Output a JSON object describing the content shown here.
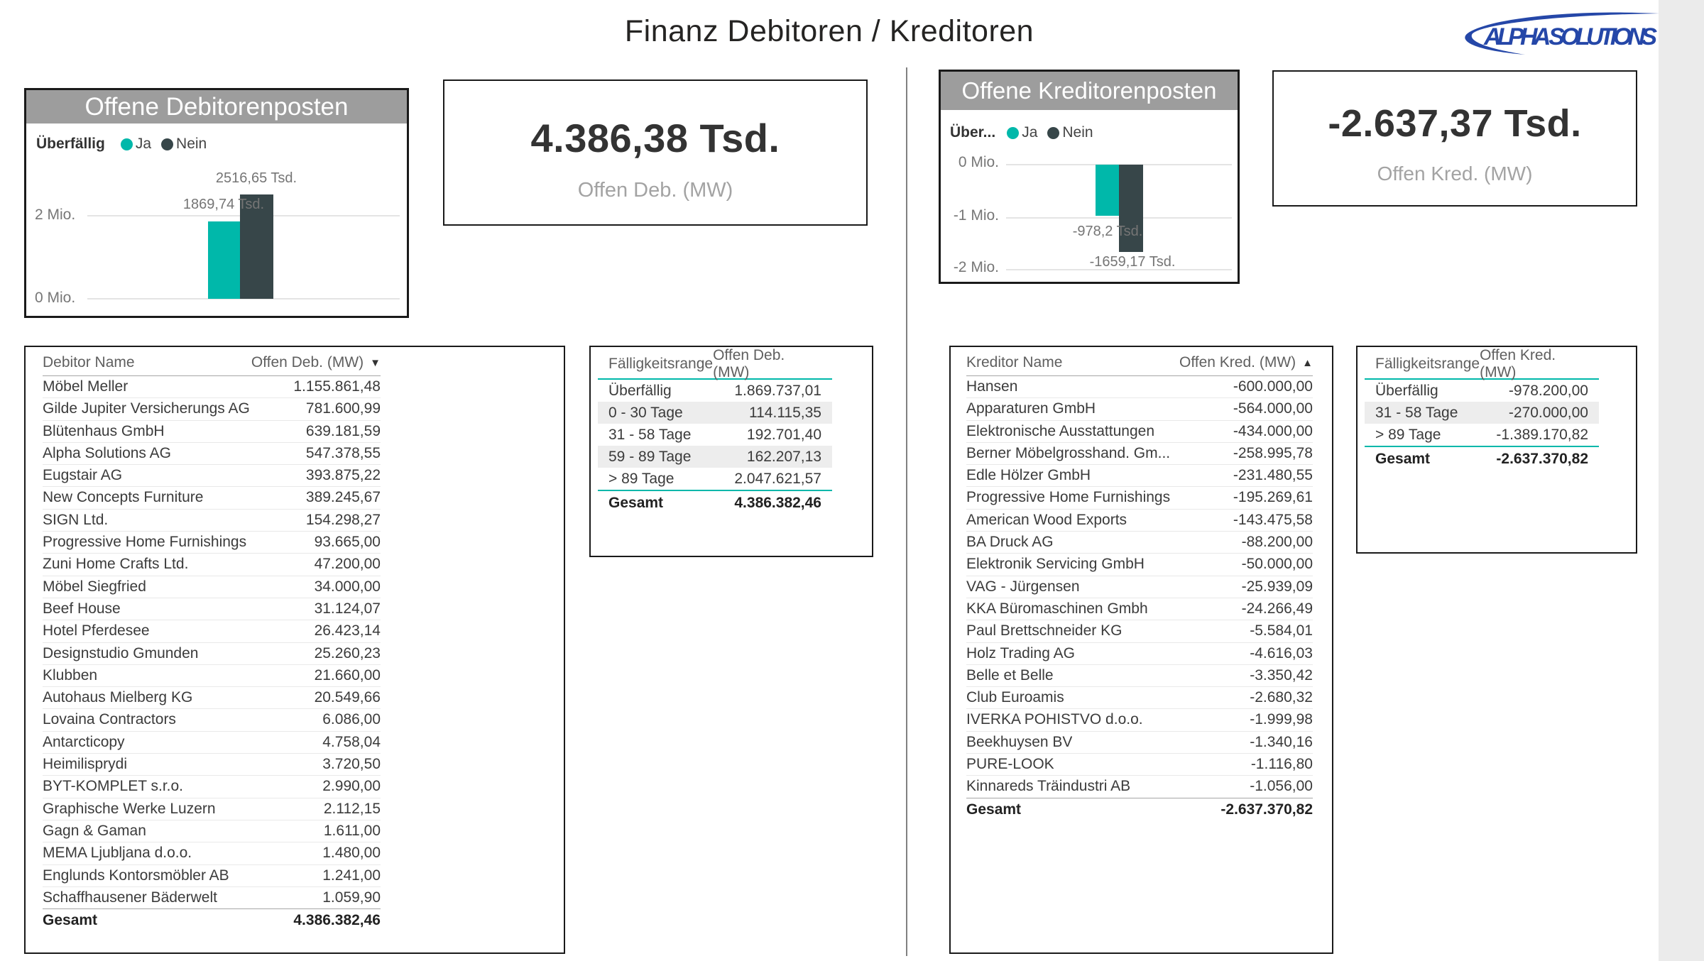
{
  "page": {
    "title": "Finanz Debitoren / Kreditoren",
    "background": "#FFFFFF",
    "desktop_strip_color": "#EBEBEB"
  },
  "logo": {
    "text": "ALPHA SOLUTIONS",
    "color": "#2547A8"
  },
  "colors": {
    "teal": "#00B8AA",
    "dark_slate": "#374649",
    "card_header_bg": "#9D9D9D"
  },
  "chart_data": [
    {
      "id": "debitoren-bar-chart",
      "type": "bar",
      "title": "Offene Debitorenposten",
      "legend_title": "Überfällig",
      "legend_position": "top",
      "categories": [
        "Ja",
        "Nein"
      ],
      "series": [
        {
          "name": "Offen Deb. (MW)",
          "values_tsd": [
            1869.74,
            2516.65
          ]
        }
      ],
      "values_mio": [
        1.86974,
        2.51665
      ],
      "labels": [
        "1869,74 Tsd.",
        "2516,65 Tsd."
      ],
      "y_ticks": [
        "2 Mio.",
        "0 Mio."
      ],
      "ylim_mio": [
        0,
        2.7
      ],
      "grid": true
    },
    {
      "id": "kreditoren-bar-chart",
      "type": "bar",
      "title": "Offene Kreditorenposten",
      "legend_title": "Über...",
      "legend_position": "top",
      "categories": [
        "Ja",
        "Nein"
      ],
      "series": [
        {
          "name": "Offen Kred. (MW)",
          "values_tsd": [
            -978.2,
            -1659.17
          ]
        }
      ],
      "values_mio": [
        -0.9782,
        -1.65917
      ],
      "labels": [
        "-978,2 Tsd.",
        "-1659,17 Tsd."
      ],
      "y_ticks": [
        "0 Mio.",
        "-1 Mio.",
        "-2 Mio."
      ],
      "ylim_mio": [
        -2.2,
        0
      ],
      "grid": true
    }
  ],
  "debitoren": {
    "kpi": {
      "value": "4.386,38 Tsd.",
      "label": "Offen Deb. (MW)"
    },
    "table": {
      "col_name": "Debitor Name",
      "col_value": "Offen Deb. (MW)",
      "sort_icon": "▼",
      "rows": [
        [
          "Möbel Meller",
          "1.155.861,48"
        ],
        [
          "Gilde Jupiter Versicherungs AG",
          "781.600,99"
        ],
        [
          "Blütenhaus GmbH",
          "639.181,59"
        ],
        [
          "Alpha Solutions AG",
          "547.378,55"
        ],
        [
          "Eugstair AG",
          "393.875,22"
        ],
        [
          "New Concepts Furniture",
          "389.245,67"
        ],
        [
          "SIGN Ltd.",
          "154.298,27"
        ],
        [
          "Progressive Home Furnishings",
          "93.665,00"
        ],
        [
          "Zuni Home Crafts Ltd.",
          "47.200,00"
        ],
        [
          "Möbel Siegfried",
          "34.000,00"
        ],
        [
          "Beef House",
          "31.124,07"
        ],
        [
          "Hotel Pferdesee",
          "26.423,14"
        ],
        [
          "Designstudio Gmunden",
          "25.260,23"
        ],
        [
          "Klubben",
          "21.660,00"
        ],
        [
          "Autohaus Mielberg KG",
          "20.549,66"
        ],
        [
          "Lovaina Contractors",
          "6.086,00"
        ],
        [
          "Antarcticopy",
          "4.758,04"
        ],
        [
          "Heimilisprydi",
          "3.720,50"
        ],
        [
          "BYT-KOMPLET s.r.o.",
          "2.990,00"
        ],
        [
          "Graphische Werke Luzern",
          "2.112,15"
        ],
        [
          "Gagn & Gaman",
          "1.611,00"
        ],
        [
          "MEMA Ljubljana d.o.o.",
          "1.480,00"
        ],
        [
          "Englunds Kontorsmöbler AB",
          "1.241,00"
        ],
        [
          "Schaffhausener Bäderwelt",
          "1.059,90"
        ]
      ],
      "total_label": "Gesamt",
      "total_value": "4.386.382,46"
    },
    "aging": {
      "col_name": "Fälligkeitsrange",
      "col_value": "Offen Deb. (MW)",
      "rows": [
        [
          "Überfällig",
          "1.869.737,01"
        ],
        [
          "0 - 30 Tage",
          "114.115,35"
        ],
        [
          "31 - 58 Tage",
          "192.701,40"
        ],
        [
          "59 - 89 Tage",
          "162.207,13"
        ],
        [
          "> 89 Tage",
          "2.047.621,57"
        ]
      ],
      "total_label": "Gesamt",
      "total_value": "4.386.382,46"
    }
  },
  "kreditoren": {
    "kpi": {
      "value": "-2.637,37 Tsd.",
      "label": "Offen Kred. (MW)"
    },
    "table": {
      "col_name": "Kreditor Name",
      "col_value": "Offen Kred. (MW)",
      "sort_icon": "▲",
      "rows": [
        [
          "Hansen",
          "-600.000,00"
        ],
        [
          "Apparaturen GmbH",
          "-564.000,00"
        ],
        [
          "Elektronische Ausstattungen",
          "-434.000,00"
        ],
        [
          "Berner Möbelgrosshand. Gm...",
          "-258.995,78"
        ],
        [
          "Edle Hölzer GmbH",
          "-231.480,55"
        ],
        [
          "Progressive Home Furnishings",
          "-195.269,61"
        ],
        [
          "American Wood Exports",
          "-143.475,58"
        ],
        [
          "BA Druck AG",
          "-88.200,00"
        ],
        [
          "Elektronik Servicing GmbH",
          "-50.000,00"
        ],
        [
          "VAG - Jürgensen",
          "-25.939,09"
        ],
        [
          "KKA Büromaschinen Gmbh",
          "-24.266,49"
        ],
        [
          "Paul Brettschneider KG",
          "-5.584,01"
        ],
        [
          "Holz Trading AG",
          "-4.616,03"
        ],
        [
          "Belle et Belle",
          "-3.350,42"
        ],
        [
          "Club Euroamis",
          "-2.680,32"
        ],
        [
          "IVERKA POHISTVO d.o.o.",
          "-1.999,98"
        ],
        [
          "Beekhuysen BV",
          "-1.340,16"
        ],
        [
          "PURE-LOOK",
          "-1.116,80"
        ],
        [
          "Kinnareds Träindustri AB",
          "-1.056,00"
        ]
      ],
      "total_label": "Gesamt",
      "total_value": "-2.637.370,82"
    },
    "aging": {
      "col_name": "Fälligkeitsrange",
      "col_value": "Offen Kred. (MW)",
      "rows": [
        [
          "Überfällig",
          "-978.200,00"
        ],
        [
          "31 - 58 Tage",
          "-270.000,00"
        ],
        [
          "> 89 Tage",
          "-1.389.170,82"
        ]
      ],
      "total_label": "Gesamt",
      "total_value": "-2.637.370,82"
    }
  }
}
